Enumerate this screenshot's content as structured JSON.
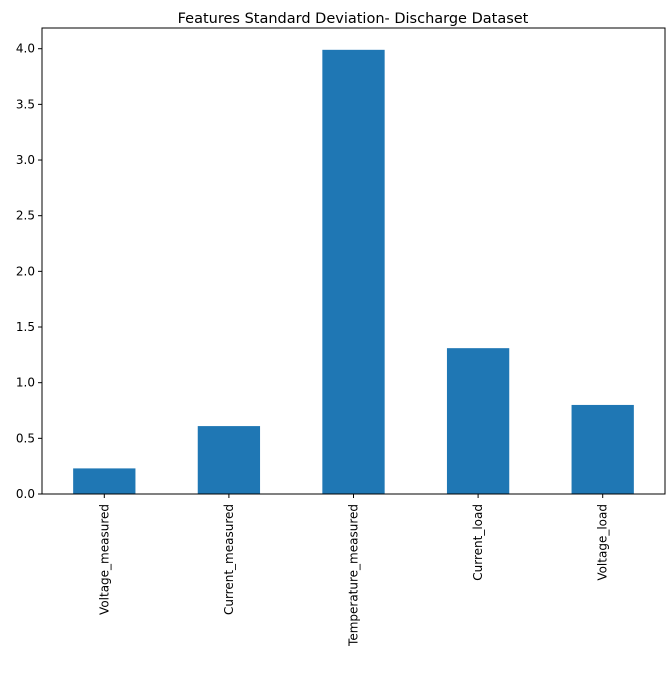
{
  "chart_data": {
    "type": "bar",
    "title": "Features Standard Deviation- Discharge Dataset",
    "xlabel": "",
    "ylabel": "",
    "categories": [
      "Voltage_measured",
      "Current_measured",
      "Temperature_measured",
      "Current_load",
      "Voltage_load"
    ],
    "values": [
      0.23,
      0.61,
      3.99,
      1.31,
      0.8
    ],
    "ylim": [
      0,
      4.186
    ],
    "yticks": [
      "0.0",
      "0.5",
      "1.0",
      "1.5",
      "2.0",
      "2.5",
      "3.0",
      "3.5",
      "4.0"
    ],
    "bar_color": "#1f77b4",
    "grid": false,
    "legend": "none"
  }
}
